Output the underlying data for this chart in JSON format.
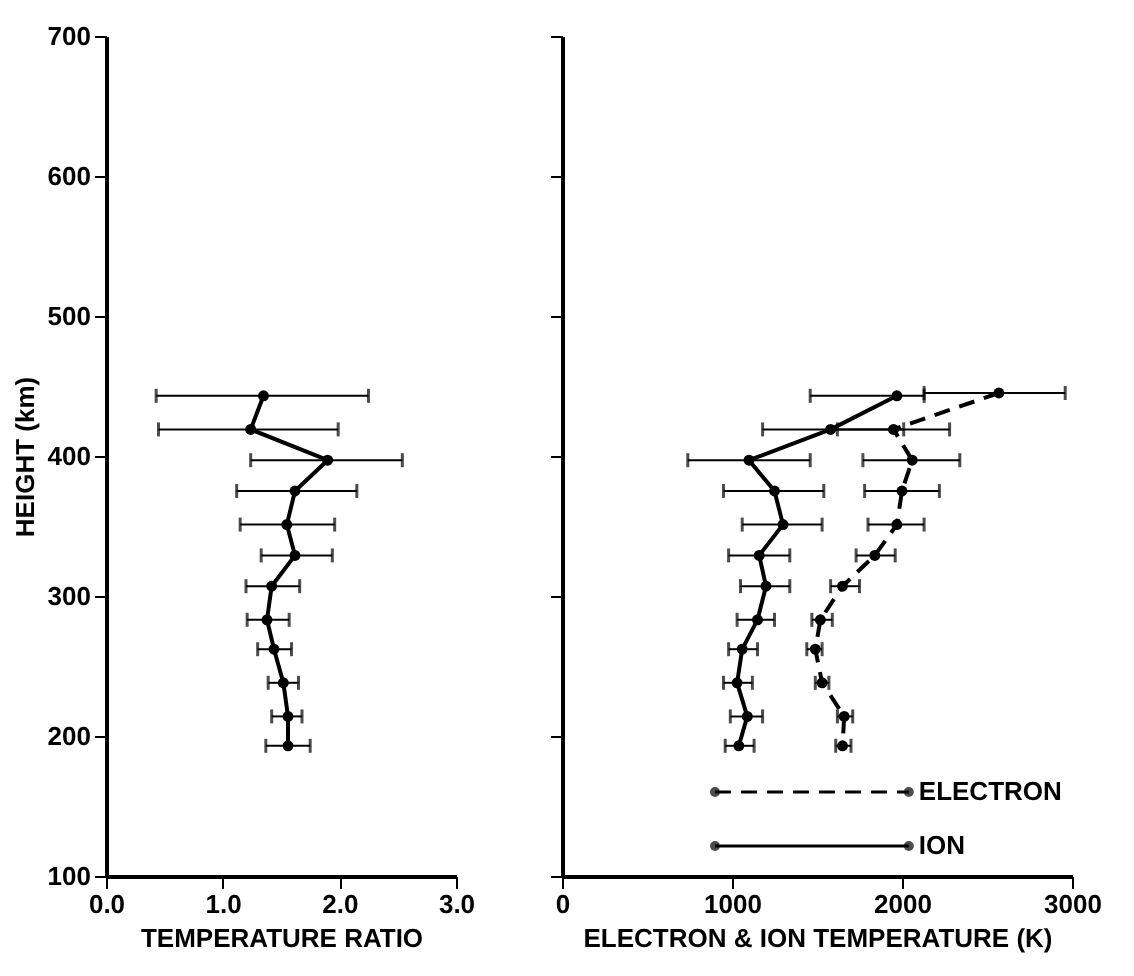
{
  "chart_data": [
    {
      "type": "line",
      "xlabel": "TEMPERATURE RATIO",
      "ylabel": "HEIGHT (km)",
      "xlim": [
        0,
        3
      ],
      "xticks": [
        {
          "value": 0,
          "label": "0.0"
        },
        {
          "value": 1,
          "label": "1.0"
        },
        {
          "value": 2,
          "label": "2.0"
        },
        {
          "value": 3,
          "label": "3.0"
        }
      ],
      "ylim": [
        100,
        700
      ],
      "yticks": [
        100,
        200,
        300,
        400,
        500,
        600,
        700
      ],
      "grid": false,
      "marker": "circle",
      "series": [
        {
          "color": "#000000",
          "line_style": "solid",
          "x": [
            1.35,
            1.24,
            1.9,
            1.62,
            1.55,
            1.62,
            1.42,
            1.38,
            1.44,
            1.52,
            1.56,
            1.56
          ],
          "values": [
            443,
            419,
            397,
            375,
            351,
            329,
            307,
            283,
            262,
            238,
            214,
            193
          ],
          "xerrors": [
            [
              0.43,
              2.25
            ],
            [
              0.45,
              1.99
            ],
            [
              1.24,
              2.54
            ],
            [
              1.12,
              2.15
            ],
            [
              1.15,
              1.96
            ],
            [
              1.33,
              1.94
            ],
            [
              1.2,
              1.66
            ],
            [
              1.21,
              1.57
            ],
            [
              1.3,
              1.59
            ],
            [
              1.39,
              1.65
            ],
            [
              1.42,
              1.68
            ],
            [
              1.37,
              1.75
            ]
          ]
        }
      ]
    },
    {
      "type": "line",
      "xlabel": "ELECTRON & ION TEMPERATURE (K)",
      "xlim": [
        0,
        3000
      ],
      "xticks": [
        0,
        {
          "value": 1000,
          "label": "1000"
        },
        {
          "value": 2000,
          "label": "2000"
        },
        {
          "value": 3000,
          "label": "3000"
        }
      ],
      "ylim": [
        100,
        700
      ],
      "yticks": [
        100,
        200,
        300,
        400,
        500,
        600,
        700
      ],
      "tick_labels": "x",
      "grid": false,
      "legend": "bottom right",
      "marker": "circle",
      "series": [
        {
          "name": "ELECTRON",
          "color": "#000000",
          "line_style": "dashed",
          "x": [
            2570,
            1950,
            2060,
            2000,
            1970,
            1840,
            1650,
            1520,
            1490,
            1530,
            1660,
            1650
          ],
          "values": [
            445,
            419,
            397,
            375,
            351,
            329,
            307,
            283,
            262,
            238,
            214,
            193
          ],
          "xerrors": [
            [
              2130,
              2960
            ],
            [
              1620,
              2280
            ],
            [
              1770,
              2340
            ],
            [
              1780,
              2220
            ],
            [
              1800,
              2130
            ],
            [
              1730,
              1960
            ],
            [
              1580,
              1750
            ],
            [
              1470,
              1590
            ],
            [
              1440,
              1530
            ],
            [
              1490,
              1570
            ],
            [
              1620,
              1710
            ],
            [
              1610,
              1700
            ]
          ]
        },
        {
          "name": "ION",
          "color": "#000000",
          "line_style": "solid",
          "x": [
            1970,
            1580,
            1100,
            1250,
            1300,
            1160,
            1200,
            1150,
            1060,
            1030,
            1090,
            1040
          ],
          "values": [
            443,
            419,
            397,
            375,
            351,
            329,
            307,
            283,
            262,
            238,
            214,
            193
          ],
          "xerrors": [
            [
              1460,
              2130
            ],
            [
              1180,
              2010
            ],
            [
              740,
              1460
            ],
            [
              950,
              1540
            ],
            [
              1060,
              1530
            ],
            [
              980,
              1340
            ],
            [
              1050,
              1340
            ],
            [
              1030,
              1250
            ],
            [
              980,
              1150
            ],
            [
              950,
              1120
            ],
            [
              990,
              1180
            ],
            [
              960,
              1130
            ]
          ]
        }
      ]
    }
  ]
}
